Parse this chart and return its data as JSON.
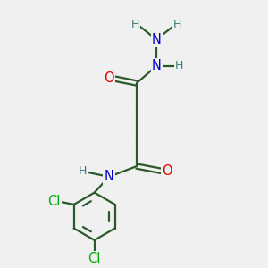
{
  "bg_color": "#f0f0f0",
  "bond_color": "#2a5a2a",
  "bond_width": 1.6,
  "atom_colors": {
    "O": "#dd0000",
    "N": "#0000cc",
    "Cl": "#00aa00",
    "H": "#3a7a7a",
    "C": "#2a5a2a"
  },
  "font_size_atom": 10.5,
  "font_size_H": 9.0
}
